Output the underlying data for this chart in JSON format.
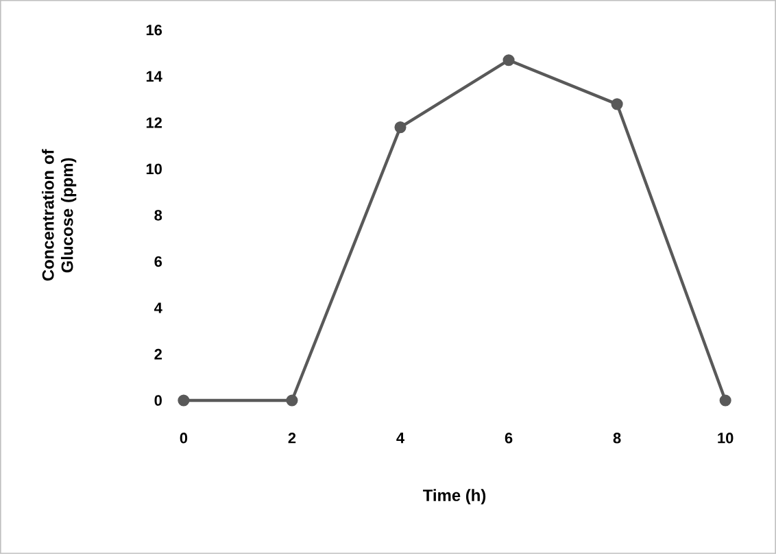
{
  "chart_data": {
    "type": "line",
    "xlabel": "Time (h)",
    "ylabel": "Concentration of Glucose (ppm)",
    "x": [
      0,
      2,
      4,
      6,
      8,
      10
    ],
    "series": [
      {
        "color": "#595959",
        "values": [
          0,
          0,
          11.8,
          14.7,
          12.8,
          0
        ]
      }
    ],
    "xlim": [
      0,
      10
    ],
    "xticks": [
      0,
      2,
      4,
      6,
      8,
      10
    ],
    "ylim": [
      0,
      16
    ],
    "yticks": [
      0,
      2,
      4,
      6,
      8,
      10,
      12,
      14,
      16
    ],
    "marker": "circle",
    "line_style": "solid",
    "grid": false
  }
}
